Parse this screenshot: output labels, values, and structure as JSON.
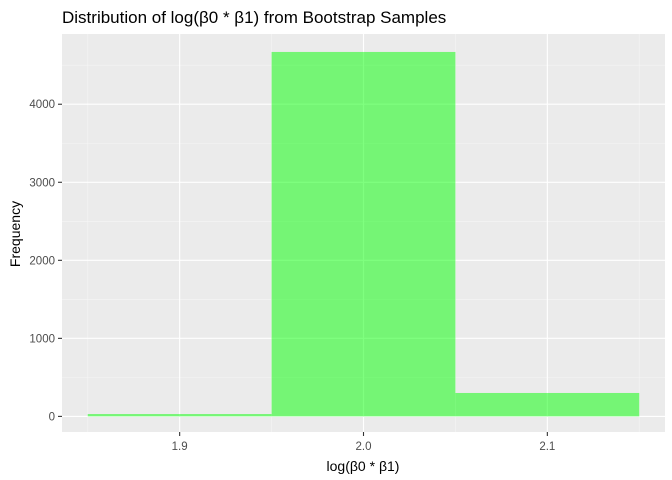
{
  "chart_data": {
    "type": "bar",
    "subtype": "histogram",
    "title": "Distribution of log(β0 * β1) from Bootstrap Samples",
    "xlabel": "log(β0 * β1)",
    "ylabel": "Frequency",
    "bins": [
      {
        "x_start": 1.85,
        "x_end": 1.95,
        "count": 30
      },
      {
        "x_start": 1.95,
        "x_end": 2.05,
        "count": 4670
      },
      {
        "x_start": 2.05,
        "x_end": 2.15,
        "count": 300
      }
    ],
    "xlim": [
      1.836,
      2.164
    ],
    "ylim": [
      -200,
      4900
    ],
    "x_ticks": [
      {
        "value": 1.9,
        "label": "1.9"
      },
      {
        "value": 2.0,
        "label": "2.0"
      },
      {
        "value": 2.1,
        "label": "2.1"
      }
    ],
    "y_ticks": [
      {
        "value": 0,
        "label": "0"
      },
      {
        "value": 1000,
        "label": "1000"
      },
      {
        "value": 2000,
        "label": "2000"
      },
      {
        "value": 3000,
        "label": "3000"
      },
      {
        "value": 4000,
        "label": "4000"
      }
    ],
    "grid": true,
    "colors": {
      "bar_fill": "#00ff00",
      "bar_opacity": 0.5,
      "panel_background": "#ebebeb",
      "grid_major": "#ffffff",
      "grid_minor": "#f5f5f5"
    }
  }
}
